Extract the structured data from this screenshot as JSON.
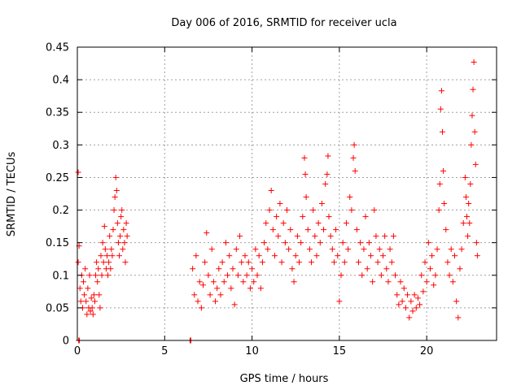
{
  "chart_data": {
    "type": "scatter",
    "title": "Day 006 of 2016, SRMTID for receiver ucla",
    "xlabel": "GPS time / hours",
    "ylabel": "SRMTID / TECUs",
    "xlim": [
      0,
      24
    ],
    "ylim": [
      0,
      0.45
    ],
    "xticks": [
      0,
      5,
      10,
      15,
      20
    ],
    "xtick_labels": [
      "0",
      "5",
      "10",
      "15",
      "20"
    ],
    "yticks": [
      0,
      0.05,
      0.1,
      0.15,
      0.2,
      0.25,
      0.3,
      0.35,
      0.4,
      0.45
    ],
    "ytick_labels": [
      "0",
      "0.05",
      "0.1",
      "0.15",
      "0.2",
      "0.25",
      "0.3",
      "0.35",
      "0.4",
      "0.45"
    ],
    "grid": true,
    "marker": "plus",
    "color": "#ff0000",
    "series": [
      {
        "name": "SRMTID",
        "points": [
          [
            0.05,
            0.258
          ],
          [
            0.05,
            0.12
          ],
          [
            0.08,
            0.0
          ],
          [
            0.12,
            0.0
          ],
          [
            0.1,
            0.145
          ],
          [
            0.15,
            0.08
          ],
          [
            0.2,
            0.06
          ],
          [
            0.25,
            0.1
          ],
          [
            0.3,
            0.05
          ],
          [
            0.35,
            0.09
          ],
          [
            0.4,
            0.07
          ],
          [
            0.45,
            0.11
          ],
          [
            0.5,
            0.06
          ],
          [
            0.55,
            0.04
          ],
          [
            0.6,
            0.08
          ],
          [
            0.65,
            0.05
          ],
          [
            0.7,
            0.1
          ],
          [
            0.75,
            0.045
          ],
          [
            0.8,
            0.065
          ],
          [
            0.85,
            0.05
          ],
          [
            0.9,
            0.04
          ],
          [
            0.95,
            0.07
          ],
          [
            1.0,
            0.06
          ],
          [
            1.05,
            0.1
          ],
          [
            1.1,
            0.12
          ],
          [
            1.15,
            0.09
          ],
          [
            1.2,
            0.11
          ],
          [
            1.25,
            0.07
          ],
          [
            1.3,
            0.05
          ],
          [
            1.35,
            0.13
          ],
          [
            1.4,
            0.1
          ],
          [
            1.45,
            0.15
          ],
          [
            1.5,
            0.12
          ],
          [
            1.55,
            0.175
          ],
          [
            1.6,
            0.14
          ],
          [
            1.65,
            0.11
          ],
          [
            1.7,
            0.13
          ],
          [
            1.75,
            0.1
          ],
          [
            1.8,
            0.12
          ],
          [
            1.85,
            0.16
          ],
          [
            1.9,
            0.11
          ],
          [
            1.95,
            0.14
          ],
          [
            2.0,
            0.13
          ],
          [
            2.05,
            0.17
          ],
          [
            2.1,
            0.2
          ],
          [
            2.15,
            0.22
          ],
          [
            2.2,
            0.25
          ],
          [
            2.25,
            0.23
          ],
          [
            2.3,
            0.18
          ],
          [
            2.35,
            0.15
          ],
          [
            2.4,
            0.13
          ],
          [
            2.45,
            0.16
          ],
          [
            2.5,
            0.19
          ],
          [
            2.55,
            0.2
          ],
          [
            2.6,
            0.14
          ],
          [
            2.65,
            0.17
          ],
          [
            2.7,
            0.15
          ],
          [
            2.75,
            0.12
          ],
          [
            2.8,
            0.18
          ],
          [
            2.85,
            0.16
          ],
          [
            6.45,
            0.0
          ],
          [
            6.5,
            0.0
          ],
          [
            6.6,
            0.11
          ],
          [
            6.7,
            0.07
          ],
          [
            6.8,
            0.13
          ],
          [
            6.9,
            0.06
          ],
          [
            7.0,
            0.09
          ],
          [
            7.1,
            0.05
          ],
          [
            7.2,
            0.085
          ],
          [
            7.3,
            0.12
          ],
          [
            7.4,
            0.165
          ],
          [
            7.5,
            0.1
          ],
          [
            7.6,
            0.07
          ],
          [
            7.7,
            0.14
          ],
          [
            7.8,
            0.09
          ],
          [
            7.9,
            0.06
          ],
          [
            8.0,
            0.08
          ],
          [
            8.1,
            0.11
          ],
          [
            8.2,
            0.07
          ],
          [
            8.3,
            0.12
          ],
          [
            8.4,
            0.09
          ],
          [
            8.5,
            0.15
          ],
          [
            8.6,
            0.1
          ],
          [
            8.7,
            0.13
          ],
          [
            8.8,
            0.08
          ],
          [
            8.9,
            0.11
          ],
          [
            9.0,
            0.055
          ],
          [
            9.1,
            0.14
          ],
          [
            9.2,
            0.1
          ],
          [
            9.3,
            0.16
          ],
          [
            9.4,
            0.12
          ],
          [
            9.5,
            0.09
          ],
          [
            9.6,
            0.13
          ],
          [
            9.7,
            0.1
          ],
          [
            9.8,
            0.12
          ],
          [
            9.9,
            0.08
          ],
          [
            10.0,
            0.11
          ],
          [
            10.1,
            0.09
          ],
          [
            10.2,
            0.14
          ],
          [
            10.3,
            0.1
          ],
          [
            10.4,
            0.13
          ],
          [
            10.5,
            0.08
          ],
          [
            10.6,
            0.12
          ],
          [
            10.7,
            0.15
          ],
          [
            10.8,
            0.18
          ],
          [
            10.9,
            0.14
          ],
          [
            11.0,
            0.2
          ],
          [
            11.1,
            0.23
          ],
          [
            11.2,
            0.17
          ],
          [
            11.3,
            0.13
          ],
          [
            11.4,
            0.19
          ],
          [
            11.5,
            0.16
          ],
          [
            11.6,
            0.21
          ],
          [
            11.7,
            0.12
          ],
          [
            11.8,
            0.18
          ],
          [
            11.9,
            0.15
          ],
          [
            12.0,
            0.2
          ],
          [
            12.1,
            0.14
          ],
          [
            12.2,
            0.17
          ],
          [
            12.3,
            0.11
          ],
          [
            12.4,
            0.09
          ],
          [
            12.5,
            0.13
          ],
          [
            12.6,
            0.16
          ],
          [
            12.7,
            0.12
          ],
          [
            12.8,
            0.15
          ],
          [
            12.9,
            0.19
          ],
          [
            13.0,
            0.28
          ],
          [
            13.05,
            0.255
          ],
          [
            13.1,
            0.22
          ],
          [
            13.2,
            0.17
          ],
          [
            13.3,
            0.14
          ],
          [
            13.4,
            0.12
          ],
          [
            13.5,
            0.2
          ],
          [
            13.6,
            0.16
          ],
          [
            13.7,
            0.13
          ],
          [
            13.8,
            0.18
          ],
          [
            13.9,
            0.15
          ],
          [
            14.0,
            0.21
          ],
          [
            14.1,
            0.17
          ],
          [
            14.2,
            0.24
          ],
          [
            14.3,
            0.255
          ],
          [
            14.35,
            0.283
          ],
          [
            14.4,
            0.19
          ],
          [
            14.5,
            0.16
          ],
          [
            14.6,
            0.14
          ],
          [
            14.7,
            0.12
          ],
          [
            14.8,
            0.17
          ],
          [
            14.9,
            0.13
          ],
          [
            15.0,
            0.06
          ],
          [
            15.1,
            0.1
          ],
          [
            15.2,
            0.15
          ],
          [
            15.3,
            0.12
          ],
          [
            15.4,
            0.18
          ],
          [
            15.5,
            0.14
          ],
          [
            15.6,
            0.22
          ],
          [
            15.7,
            0.2
          ],
          [
            15.8,
            0.28
          ],
          [
            15.85,
            0.3
          ],
          [
            15.9,
            0.26
          ],
          [
            16.0,
            0.17
          ],
          [
            16.1,
            0.12
          ],
          [
            16.2,
            0.15
          ],
          [
            16.3,
            0.1
          ],
          [
            16.4,
            0.14
          ],
          [
            16.5,
            0.19
          ],
          [
            16.6,
            0.11
          ],
          [
            16.7,
            0.15
          ],
          [
            16.8,
            0.13
          ],
          [
            16.9,
            0.09
          ],
          [
            17.0,
            0.2
          ],
          [
            17.1,
            0.16
          ],
          [
            17.2,
            0.12
          ],
          [
            17.3,
            0.14
          ],
          [
            17.4,
            0.1
          ],
          [
            17.5,
            0.13
          ],
          [
            17.6,
            0.16
          ],
          [
            17.7,
            0.11
          ],
          [
            17.8,
            0.09
          ],
          [
            17.9,
            0.14
          ],
          [
            18.0,
            0.12
          ],
          [
            18.1,
            0.16
          ],
          [
            18.2,
            0.1
          ],
          [
            18.3,
            0.07
          ],
          [
            18.4,
            0.055
          ],
          [
            18.5,
            0.09
          ],
          [
            18.6,
            0.06
          ],
          [
            18.7,
            0.08
          ],
          [
            18.8,
            0.05
          ],
          [
            18.9,
            0.07
          ],
          [
            19.0,
            0.035
          ],
          [
            19.1,
            0.06
          ],
          [
            19.2,
            0.045
          ],
          [
            19.3,
            0.07
          ],
          [
            19.4,
            0.05
          ],
          [
            19.5,
            0.065
          ],
          [
            19.6,
            0.055
          ],
          [
            19.7,
            0.1
          ],
          [
            19.8,
            0.075
          ],
          [
            19.9,
            0.12
          ],
          [
            20.0,
            0.09
          ],
          [
            20.1,
            0.15
          ],
          [
            20.2,
            0.11
          ],
          [
            20.3,
            0.13
          ],
          [
            20.4,
            0.085
          ],
          [
            20.5,
            0.1
          ],
          [
            20.6,
            0.14
          ],
          [
            20.7,
            0.2
          ],
          [
            20.75,
            0.24
          ],
          [
            20.8,
            0.355
          ],
          [
            20.85,
            0.383
          ],
          [
            20.9,
            0.32
          ],
          [
            20.95,
            0.26
          ],
          [
            21.0,
            0.21
          ],
          [
            21.1,
            0.17
          ],
          [
            21.2,
            0.12
          ],
          [
            21.3,
            0.1
          ],
          [
            21.4,
            0.14
          ],
          [
            21.5,
            0.09
          ],
          [
            21.6,
            0.13
          ],
          [
            21.7,
            0.06
          ],
          [
            21.8,
            0.035
          ],
          [
            21.9,
            0.11
          ],
          [
            22.0,
            0.14
          ],
          [
            22.1,
            0.18
          ],
          [
            22.2,
            0.25
          ],
          [
            22.25,
            0.22
          ],
          [
            22.3,
            0.19
          ],
          [
            22.35,
            0.16
          ],
          [
            22.4,
            0.21
          ],
          [
            22.45,
            0.18
          ],
          [
            22.5,
            0.24
          ],
          [
            22.55,
            0.3
          ],
          [
            22.6,
            0.345
          ],
          [
            22.65,
            0.385
          ],
          [
            22.7,
            0.427
          ],
          [
            22.75,
            0.32
          ],
          [
            22.8,
            0.27
          ],
          [
            22.85,
            0.15
          ],
          [
            22.9,
            0.13
          ]
        ]
      }
    ]
  }
}
